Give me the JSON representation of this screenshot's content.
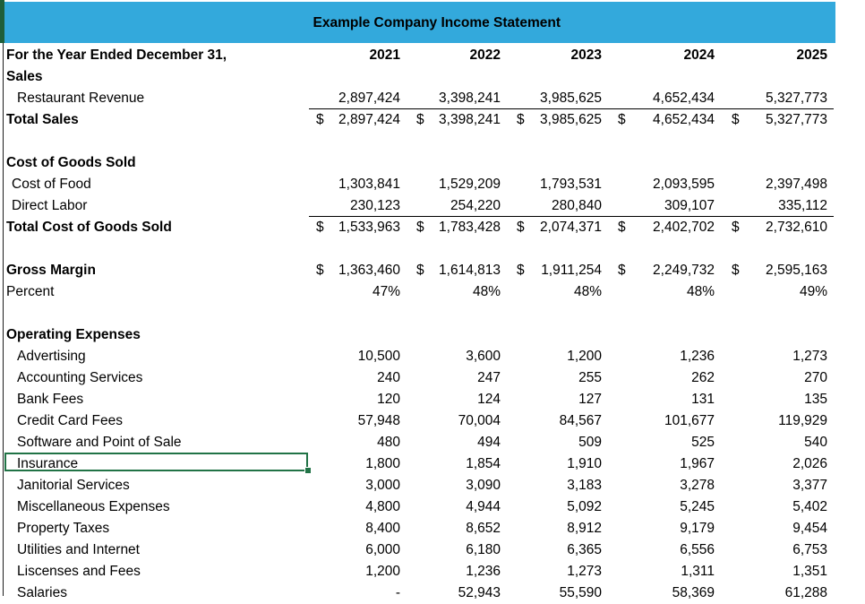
{
  "title": "Example Company Income Statement",
  "header": {
    "period_label": "For the Year Ended December 31,",
    "years": [
      "2021",
      "2022",
      "2023",
      "2024",
      "2025"
    ]
  },
  "sales": {
    "section": "Sales",
    "revenue_label": "Restaurant Revenue",
    "revenue": [
      "2,897,424",
      "3,398,241",
      "3,985,625",
      "4,652,434",
      "5,327,773"
    ],
    "total_label": "Total Sales",
    "total": [
      "2,897,424",
      "3,398,241",
      "3,985,625",
      "4,652,434",
      "5,327,773"
    ]
  },
  "cogs": {
    "section": "Cost of Goods Sold",
    "food_label": "Cost of Food",
    "food": [
      "1,303,841",
      "1,529,209",
      "1,793,531",
      "2,093,595",
      "2,397,498"
    ],
    "labor_label": "Direct Labor",
    "labor": [
      "230,123",
      "254,220",
      "280,840",
      "309,107",
      "335,112"
    ],
    "total_label": "Total Cost of Goods Sold",
    "total": [
      "1,533,963",
      "1,783,428",
      "2,074,371",
      "2,402,702",
      "2,732,610"
    ]
  },
  "gross": {
    "label": "Gross Margin",
    "values": [
      "1,363,460",
      "1,614,813",
      "1,911,254",
      "2,249,732",
      "2,595,163"
    ],
    "percent_label": "Percent",
    "percent": [
      "47%",
      "48%",
      "48%",
      "48%",
      "49%"
    ]
  },
  "currency_symbol": "$",
  "opex": {
    "section": "Operating Expenses",
    "items": [
      {
        "label": "Advertising",
        "values": [
          "10,500",
          "3,600",
          "1,200",
          "1,236",
          "1,273"
        ]
      },
      {
        "label": "Accounting Services",
        "values": [
          "240",
          "247",
          "255",
          "262",
          "270"
        ]
      },
      {
        "label": "Bank Fees",
        "values": [
          "120",
          "124",
          "127",
          "131",
          "135"
        ]
      },
      {
        "label": "Credit Card Fees",
        "values": [
          "57,948",
          "70,004",
          "84,567",
          "101,677",
          "119,929"
        ]
      },
      {
        "label": "Software and Point of Sale",
        "values": [
          "480",
          "494",
          "509",
          "525",
          "540"
        ]
      },
      {
        "label": "Insurance",
        "values": [
          "1,800",
          "1,854",
          "1,910",
          "1,967",
          "2,026"
        ]
      },
      {
        "label": "Janitorial Services",
        "values": [
          "3,000",
          "3,090",
          "3,183",
          "3,278",
          "3,377"
        ]
      },
      {
        "label": "Miscellaneous Expenses",
        "values": [
          "4,800",
          "4,944",
          "5,092",
          "5,245",
          "5,402"
        ]
      },
      {
        "label": "Property Taxes",
        "values": [
          "8,400",
          "8,652",
          "8,912",
          "9,179",
          "9,454"
        ]
      },
      {
        "label": "Utilities and Internet",
        "values": [
          "6,000",
          "6,180",
          "6,365",
          "6,556",
          "6,753"
        ]
      },
      {
        "label": "Liscenses and Fees",
        "values": [
          "1,200",
          "1,236",
          "1,273",
          "1,311",
          "1,351"
        ]
      },
      {
        "label": "Salaries",
        "values": [
          "-",
          "52,943",
          "55,590",
          "58,369",
          "61,288"
        ]
      }
    ]
  }
}
